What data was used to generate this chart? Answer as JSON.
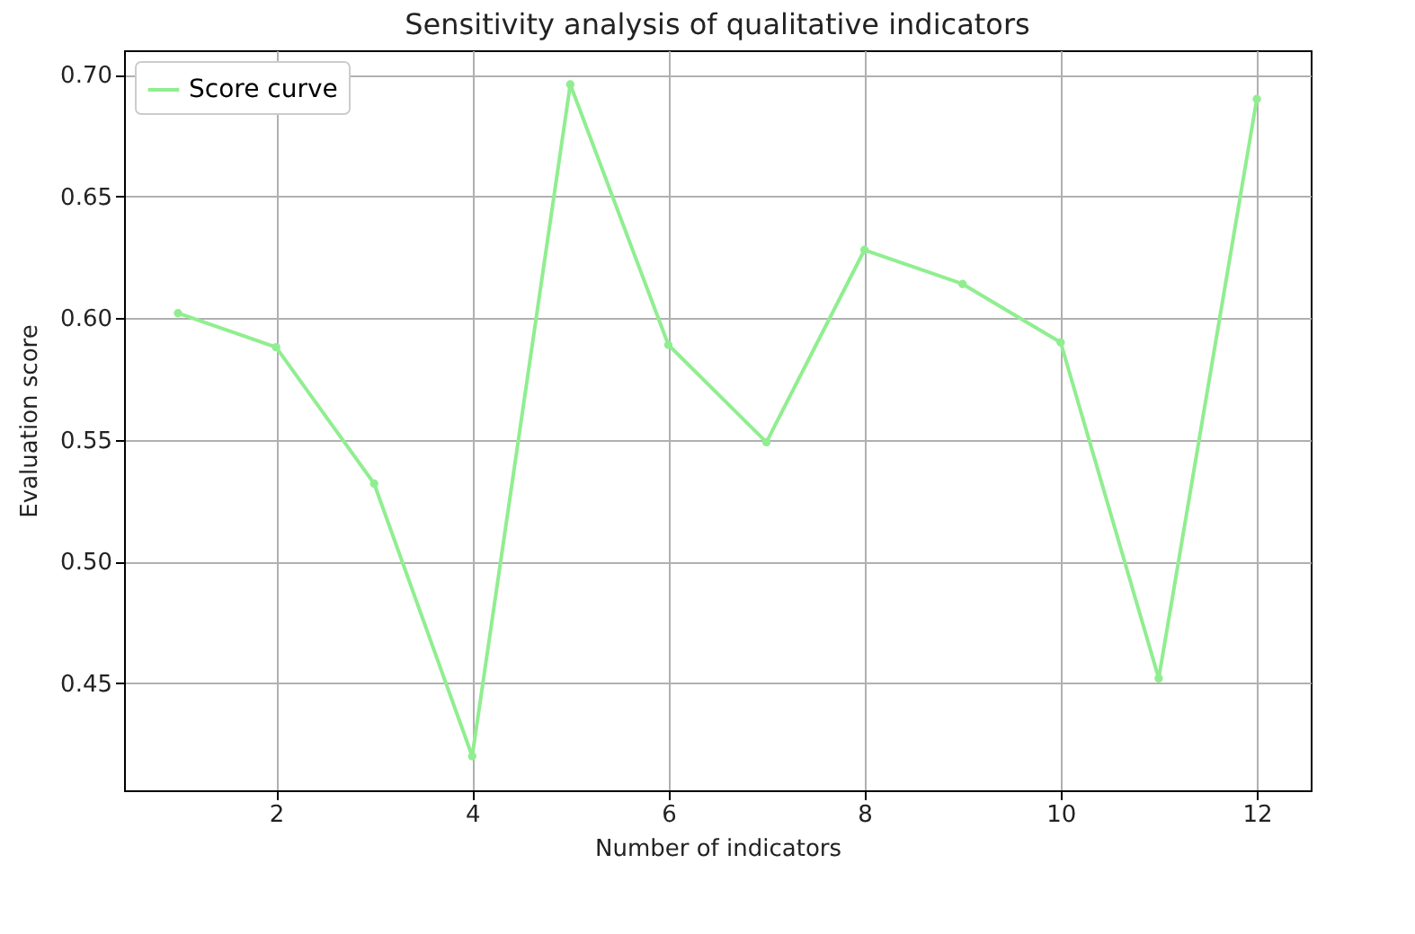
{
  "chart_data": {
    "type": "line",
    "title": "Sensitivity analysis of qualitative indicators",
    "xlabel": "Number of indicators",
    "ylabel": "Evaluation score",
    "x": [
      1,
      2,
      3,
      4,
      5,
      6,
      7,
      8,
      9,
      10,
      11,
      12
    ],
    "series": [
      {
        "name": "Score curve",
        "color": "#90ee90",
        "values": [
          0.602,
          0.588,
          0.532,
          0.42,
          0.696,
          0.589,
          0.549,
          0.628,
          0.614,
          0.59,
          0.452,
          0.69
        ]
      }
    ],
    "xlim": [
      0.45,
      12.55
    ],
    "xticks": [
      2,
      4,
      6,
      8,
      10,
      12
    ],
    "ylim": [
      0.406,
      0.71
    ],
    "yticks": [
      0.45,
      {
        "value": 0.5,
        "label": "0.50"
      },
      0.55,
      {
        "value": 0.6,
        "label": "0.60"
      },
      0.65,
      {
        "value": 0.7,
        "label": "0.70"
      }
    ],
    "grid": true,
    "legend": "top left",
    "marker": "circle",
    "line_style": "solid"
  }
}
